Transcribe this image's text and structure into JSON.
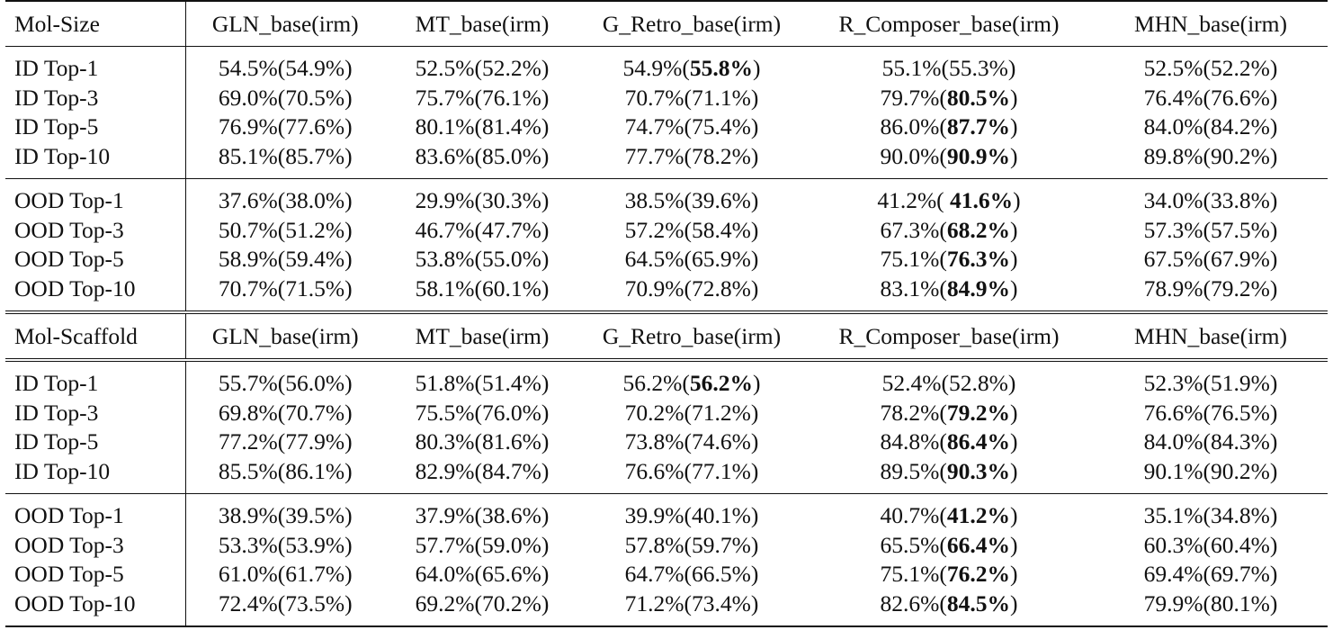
{
  "blocks": [
    {
      "split_label": "Mol-Size",
      "columns": [
        "GLN_base(irm)",
        "MT_base(irm)",
        "G_Retro_base(irm)",
        "R_Composer_base(irm)",
        "MHN_base(irm)"
      ],
      "groups": [
        {
          "rows": [
            {
              "label": "ID Top-1",
              "cells": [
                [
                  "54.5%(54.9%)",
                  ""
                ],
                [
                  "52.5%(52.2%)",
                  ""
                ],
                [
                  "54.9%(",
                  "55.8%",
                  ")"
                ],
                [
                  "55.1%(55.3%)",
                  ""
                ],
                [
                  "52.5%(52.2%)",
                  ""
                ]
              ]
            },
            {
              "label": "ID Top-3",
              "cells": [
                [
                  "69.0%(70.5%)",
                  ""
                ],
                [
                  "75.7%(76.1%)",
                  ""
                ],
                [
                  "70.7%(71.1%)",
                  ""
                ],
                [
                  "79.7%(",
                  "80.5%",
                  ")"
                ],
                [
                  "76.4%(76.6%)",
                  ""
                ]
              ]
            },
            {
              "label": "ID Top-5",
              "cells": [
                [
                  "76.9%(77.6%)",
                  ""
                ],
                [
                  "80.1%(81.4%)",
                  ""
                ],
                [
                  "74.7%(75.4%)",
                  ""
                ],
                [
                  "86.0%(",
                  "87.7%",
                  ")"
                ],
                [
                  "84.0%(84.2%)",
                  ""
                ]
              ]
            },
            {
              "label": "ID Top-10",
              "cells": [
                [
                  "85.1%(85.7%)",
                  ""
                ],
                [
                  "83.6%(85.0%)",
                  ""
                ],
                [
                  "77.7%(78.2%)",
                  ""
                ],
                [
                  "90.0%(",
                  "90.9%",
                  ")"
                ],
                [
                  "89.8%(90.2%)",
                  ""
                ]
              ]
            }
          ]
        },
        {
          "rows": [
            {
              "label": "OOD Top-1",
              "cells": [
                [
                  "37.6%(38.0%)",
                  ""
                ],
                [
                  "29.9%(30.3%)",
                  ""
                ],
                [
                  "38.5%(39.6%)",
                  ""
                ],
                [
                  "41.2%( ",
                  "41.6%",
                  ")"
                ],
                [
                  "34.0%(33.8%)",
                  ""
                ]
              ]
            },
            {
              "label": "OOD Top-3",
              "cells": [
                [
                  "50.7%(51.2%)",
                  ""
                ],
                [
                  "46.7%(47.7%)",
                  ""
                ],
                [
                  "57.2%(58.4%)",
                  ""
                ],
                [
                  "67.3%(",
                  "68.2%",
                  ")"
                ],
                [
                  "57.3%(57.5%)",
                  ""
                ]
              ]
            },
            {
              "label": "OOD Top-5",
              "cells": [
                [
                  "58.9%(59.4%)",
                  ""
                ],
                [
                  "53.8%(55.0%)",
                  ""
                ],
                [
                  "64.5%(65.9%)",
                  ""
                ],
                [
                  "75.1%(",
                  "76.3%",
                  ")"
                ],
                [
                  "67.5%(67.9%)",
                  ""
                ]
              ]
            },
            {
              "label": "OOD Top-10",
              "cells": [
                [
                  "70.7%(71.5%)",
                  ""
                ],
                [
                  "58.1%(60.1%)",
                  ""
                ],
                [
                  "70.9%(72.8%)",
                  ""
                ],
                [
                  "83.1%(",
                  "84.9%",
                  ")"
                ],
                [
                  "78.9%(79.2%)",
                  ""
                ]
              ]
            }
          ]
        }
      ]
    },
    {
      "split_label": "Mol-Scaffold",
      "columns": [
        "GLN_base(irm)",
        "MT_base(irm)",
        "G_Retro_base(irm)",
        "R_Composer_base(irm)",
        "MHN_base(irm)"
      ],
      "groups": [
        {
          "rows": [
            {
              "label": "ID Top-1",
              "cells": [
                [
                  "55.7%(56.0%)",
                  ""
                ],
                [
                  "51.8%(51.4%)",
                  ""
                ],
                [
                  "56.2%(",
                  "56.2%",
                  ")"
                ],
                [
                  "52.4%(52.8%)",
                  ""
                ],
                [
                  "52.3%(51.9%)",
                  ""
                ]
              ]
            },
            {
              "label": "ID Top-3",
              "cells": [
                [
                  "69.8%(70.7%)",
                  ""
                ],
                [
                  "75.5%(76.0%)",
                  ""
                ],
                [
                  "70.2%(71.2%)",
                  ""
                ],
                [
                  "78.2%(",
                  "79.2%",
                  ")"
                ],
                [
                  "76.6%(76.5%)",
                  ""
                ]
              ]
            },
            {
              "label": "ID Top-5",
              "cells": [
                [
                  "77.2%(77.9%)",
                  ""
                ],
                [
                  "80.3%(81.6%)",
                  ""
                ],
                [
                  "73.8%(74.6%)",
                  ""
                ],
                [
                  "84.8%(",
                  "86.4%",
                  ")"
                ],
                [
                  "84.0%(84.3%)",
                  ""
                ]
              ]
            },
            {
              "label": "ID Top-10",
              "cells": [
                [
                  "85.5%(86.1%)",
                  ""
                ],
                [
                  "82.9%(84.7%)",
                  ""
                ],
                [
                  "76.6%(77.1%)",
                  ""
                ],
                [
                  "89.5%(",
                  "90.3%",
                  ")"
                ],
                [
                  "90.1%(90.2%)",
                  ""
                ]
              ]
            }
          ]
        },
        {
          "rows": [
            {
              "label": "OOD Top-1",
              "cells": [
                [
                  "38.9%(39.5%)",
                  ""
                ],
                [
                  "37.9%(38.6%)",
                  ""
                ],
                [
                  "39.9%(40.1%)",
                  ""
                ],
                [
                  "40.7%(",
                  "41.2%",
                  ")"
                ],
                [
                  "35.1%(34.8%)",
                  ""
                ]
              ]
            },
            {
              "label": "OOD Top-3",
              "cells": [
                [
                  "53.3%(53.9%)",
                  ""
                ],
                [
                  "57.7%(59.0%)",
                  ""
                ],
                [
                  "57.8%(59.7%)",
                  ""
                ],
                [
                  "65.5%(",
                  "66.4%",
                  ")"
                ],
                [
                  "60.3%(60.4%)",
                  ""
                ]
              ]
            },
            {
              "label": "OOD Top-5",
              "cells": [
                [
                  "61.0%(61.7%)",
                  ""
                ],
                [
                  "64.0%(65.6%)",
                  ""
                ],
                [
                  "64.7%(66.5%)",
                  ""
                ],
                [
                  "75.1%(",
                  "76.2%",
                  ")"
                ],
                [
                  "69.4%(69.7%)",
                  ""
                ]
              ]
            },
            {
              "label": "OOD Top-10",
              "cells": [
                [
                  "72.4%(73.5%)",
                  ""
                ],
                [
                  "69.2%(70.2%)",
                  ""
                ],
                [
                  "71.2%(73.4%)",
                  ""
                ],
                [
                  "82.6%(",
                  "84.5%",
                  ")"
                ],
                [
                  "79.9%(80.1%)",
                  ""
                ]
              ]
            }
          ]
        }
      ]
    }
  ]
}
